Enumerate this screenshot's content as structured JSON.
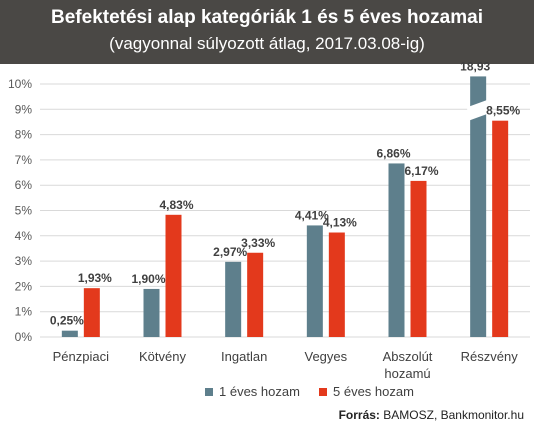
{
  "chart_data": {
    "type": "bar",
    "title": "Befektetési alap kategóriák 1 és 5 éves hozamai",
    "subtitle": "(vagyonnal súlyozott átlag, 2017.03.08-ig)",
    "categories": [
      [
        "Pénzpiaci"
      ],
      [
        "Kötvény"
      ],
      [
        "Ingatlan"
      ],
      [
        "Vegyes"
      ],
      [
        "Abszolút",
        "hozamú"
      ],
      [
        "Részvény"
      ]
    ],
    "series": [
      {
        "name": "1 éves hozam",
        "color": "#5e7f8c",
        "values": [
          0.25,
          1.9,
          2.97,
          4.41,
          6.86,
          18.93
        ],
        "labels": [
          "0,25%",
          "1,90%",
          "2,97%",
          "4,41%",
          "6,86%",
          "18,93"
        ]
      },
      {
        "name": "5 éves hozam",
        "color": "#e3391c",
        "values": [
          1.93,
          4.83,
          3.33,
          4.13,
          6.17,
          8.55
        ],
        "labels": [
          "1,93%",
          "4,83%",
          "3,33%",
          "4,13%",
          "6,17%",
          "8,55%"
        ]
      }
    ],
    "y_ticks": [
      "0%",
      "1%",
      "2%",
      "3%",
      "4%",
      "5%",
      "6%",
      "7%",
      "8%",
      "9%",
      "10%"
    ],
    "ylim": [
      0,
      10
    ],
    "axis_break": {
      "category_index": 5,
      "series_index": 0
    },
    "grid": true,
    "legend_position": "bottom"
  },
  "source": {
    "label": "Forrás:",
    "text": "BAMOSZ,  Bankmonitor.hu"
  }
}
